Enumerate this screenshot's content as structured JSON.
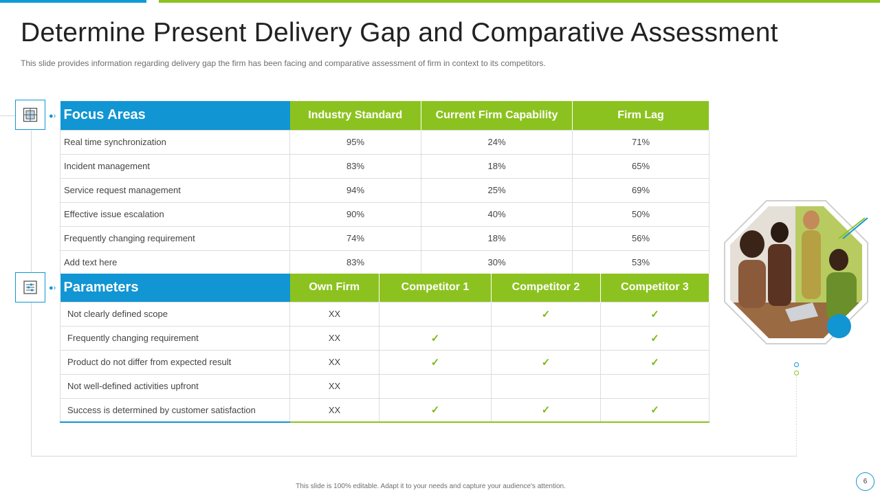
{
  "slide": {
    "title": "Determine Present Delivery Gap and Comparative Assessment",
    "subtitle": "This slide provides information regarding delivery gap the firm has been facing and comparative assessment of firm in context to its competitors.",
    "footer": "This slide is 100% editable.  Adapt it to your needs and capture your audience's attention.",
    "page_number": "6"
  },
  "colors": {
    "blue": "#1195d3",
    "green": "#8cc21f"
  },
  "focus_table": {
    "headers": [
      "Focus Areas",
      "Industry Standard",
      "Current Firm Capability",
      "Firm Lag"
    ],
    "rows": [
      [
        "Real time synchronization",
        "95%",
        "24%",
        "71%"
      ],
      [
        "Incident  management",
        "83%",
        "18%",
        "65%"
      ],
      [
        "Service  request  management",
        "94%",
        "25%",
        "69%"
      ],
      [
        "Effective  issue  escalation",
        "90%",
        "40%",
        "50%"
      ],
      [
        "Frequently  changing  requirement",
        "74%",
        "18%",
        "56%"
      ],
      [
        "Add text here",
        "83%",
        "30%",
        "53%"
      ]
    ]
  },
  "param_table": {
    "headers": [
      "Parameters",
      "Own Firm",
      "Competitor 1",
      "Competitor 2",
      "Competitor 3"
    ],
    "rows": [
      [
        "Not  clearly  defined  scope",
        "XX",
        "",
        "✓",
        "✓"
      ],
      [
        "Frequently  changing  requirement",
        "XX",
        "✓",
        "",
        "✓"
      ],
      [
        "Product  do  not  differ  from  expected  result",
        "XX",
        "✓",
        "✓",
        "✓"
      ],
      [
        "Not well-defined   activities  upfront",
        "XX",
        "",
        "",
        ""
      ],
      [
        "Success  is determined  by  customer  satisfaction",
        "XX",
        "✓",
        "✓",
        "✓"
      ]
    ]
  },
  "icons": {
    "focus": "target-grid-icon",
    "parameters": "settings-sliders-icon"
  }
}
